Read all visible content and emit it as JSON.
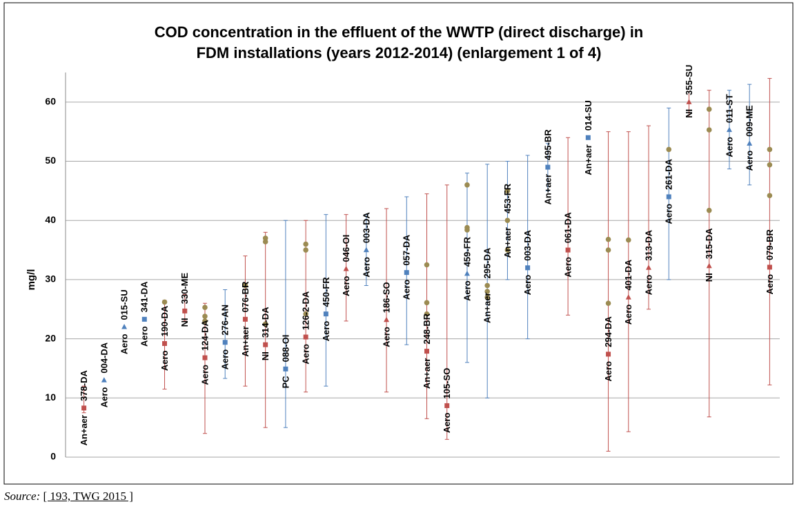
{
  "chart_data": {
    "type": "range",
    "title": [
      "COD concentration in the effluent of the WWTP (direct discharge) in",
      "FDM installations (years 2012-2014) (enlargement 1 of 4)"
    ],
    "ylabel": "mg/l",
    "ylim": [
      0,
      65
    ],
    "yticks": [
      0,
      10,
      20,
      30,
      40,
      50,
      60
    ],
    "grid": true,
    "installations": [
      {
        "type": "An+aer",
        "id": "378-DA",
        "color": "#c0504d",
        "min": 7.5,
        "max": 12,
        "points": [
          {
            "value": 8.3,
            "marker": "square",
            "color": "#c0504d"
          }
        ]
      },
      {
        "type": "Aero",
        "id": "004-DA",
        "color": "#4f81bd",
        "points": [
          {
            "value": 13.0,
            "marker": "triangle",
            "color": "#4f81bd"
          }
        ]
      },
      {
        "type": "Aero",
        "id": "015-SU",
        "color": "#4f81bd",
        "points": [
          {
            "value": 22.0,
            "marker": "triangle",
            "color": "#4f81bd"
          }
        ]
      },
      {
        "type": "Aero",
        "id": "341-DA",
        "color": "#4f81bd",
        "points": [
          {
            "value": 23.3,
            "marker": "square",
            "color": "#4f81bd"
          }
        ]
      },
      {
        "type": "Aero",
        "id": "190-DA",
        "color": "#c0504d",
        "min": 11.5,
        "max": 26.5,
        "points": [
          {
            "value": 19.2,
            "marker": "square",
            "color": "#c0504d"
          },
          {
            "value": 26.2,
            "marker": "circle",
            "color": "#9b8b52"
          }
        ]
      },
      {
        "type": "NI",
        "id": "330-ME",
        "color": "#c0504d",
        "min": 23,
        "max": 27.5,
        "points": [
          {
            "value": 24.7,
            "marker": "square",
            "color": "#c0504d"
          }
        ]
      },
      {
        "type": "Aero",
        "id": "124-DA",
        "color": "#c0504d",
        "min": 4,
        "max": 26,
        "points": [
          {
            "value": 16.8,
            "marker": "square",
            "color": "#c0504d"
          },
          {
            "value": 25.3,
            "marker": "circle",
            "color": "#9b8b52"
          },
          {
            "value": 23.8,
            "marker": "circle",
            "color": "#9b8b52"
          },
          {
            "value": 23.0,
            "marker": "circle",
            "color": "#9b8b52"
          }
        ]
      },
      {
        "type": "Aero",
        "id": "276-AN",
        "color": "#4f81bd",
        "min": 13.3,
        "max": 28.3,
        "points": [
          {
            "value": 19.4,
            "marker": "square",
            "color": "#4f81bd"
          }
        ]
      },
      {
        "type": "An+aer",
        "id": "076-BR",
        "color": "#c0504d",
        "min": 12,
        "max": 34,
        "points": [
          {
            "value": 23.3,
            "marker": "square",
            "color": "#c0504d"
          },
          {
            "value": 29.0,
            "marker": "circle",
            "color": "#9b8b52"
          }
        ]
      },
      {
        "type": "NI",
        "id": "314-DA",
        "color": "#c0504d",
        "min": 5,
        "max": 38,
        "points": [
          {
            "value": 19.0,
            "marker": "square",
            "color": "#c0504d"
          },
          {
            "value": 37.0,
            "marker": "circle",
            "color": "#9b8b52"
          },
          {
            "value": 36.4,
            "marker": "circle",
            "color": "#9b8b52"
          },
          {
            "value": 22.5,
            "marker": "circle",
            "color": "#9b8b52"
          }
        ]
      },
      {
        "type": "PC",
        "id": "088-OI",
        "color": "#4f81bd",
        "min": 5,
        "max": 40,
        "points": [
          {
            "value": 14.9,
            "marker": "square",
            "color": "#4f81bd"
          }
        ]
      },
      {
        "type": "Aero",
        "id": "126-2-DA",
        "color": "#c0504d",
        "min": 11,
        "max": 40,
        "points": [
          {
            "value": 20.3,
            "marker": "square",
            "color": "#c0504d"
          },
          {
            "value": 36.0,
            "marker": "circle",
            "color": "#9b8b52"
          },
          {
            "value": 35.0,
            "marker": "circle",
            "color": "#9b8b52"
          },
          {
            "value": 24.2,
            "marker": "circle",
            "color": "#9b8b52"
          }
        ]
      },
      {
        "type": "Aero",
        "id": "450-FR",
        "color": "#4f81bd",
        "min": 12,
        "max": 41,
        "points": [
          {
            "value": 24.2,
            "marker": "square",
            "color": "#4f81bd"
          }
        ]
      },
      {
        "type": "Aero",
        "id": "046-OI",
        "color": "#c0504d",
        "min": 23,
        "max": 41,
        "points": [
          {
            "value": 31.8,
            "marker": "triangle",
            "color": "#c0504d"
          }
        ]
      },
      {
        "type": "Aero",
        "id": "003-DA",
        "color": "#4f81bd",
        "min": 29,
        "max": 41,
        "points": [
          {
            "value": 35.0,
            "marker": "triangle",
            "color": "#4f81bd"
          }
        ]
      },
      {
        "type": "Aero",
        "id": "186-SO",
        "color": "#c0504d",
        "min": 11,
        "max": 42,
        "points": [
          {
            "value": 23.2,
            "marker": "triangle",
            "color": "#c0504d"
          }
        ]
      },
      {
        "type": "Aero",
        "id": "057-DA",
        "color": "#4f81bd",
        "min": 19,
        "max": 44,
        "points": [
          {
            "value": 31.2,
            "marker": "square",
            "color": "#4f81bd"
          }
        ]
      },
      {
        "type": "An+aer",
        "id": "248-BR",
        "color": "#c0504d",
        "min": 6.5,
        "max": 44.5,
        "points": [
          {
            "value": 17.9,
            "marker": "square",
            "color": "#c0504d"
          },
          {
            "value": 32.5,
            "marker": "circle",
            "color": "#9b8b52"
          },
          {
            "value": 26.1,
            "marker": "circle",
            "color": "#9b8b52"
          },
          {
            "value": 24.2,
            "marker": "circle",
            "color": "#9b8b52"
          }
        ]
      },
      {
        "type": "Aero",
        "id": "105-SO",
        "color": "#c0504d",
        "min": 3,
        "max": 46,
        "points": [
          {
            "value": 8.7,
            "marker": "square",
            "color": "#c0504d"
          }
        ]
      },
      {
        "type": "Aero",
        "id": "459-FR",
        "color": "#4f81bd",
        "min": 16,
        "max": 48,
        "points": [
          {
            "value": 31.0,
            "marker": "triangle",
            "color": "#4f81bd"
          },
          {
            "value": 46.0,
            "marker": "circle",
            "color": "#9b8b52"
          },
          {
            "value": 38.8,
            "marker": "circle",
            "color": "#9b8b52"
          },
          {
            "value": 38.4,
            "marker": "circle",
            "color": "#9b8b52"
          }
        ]
      },
      {
        "type": "An+aer",
        "id": "295-DA",
        "color": "#4f81bd",
        "min": 10,
        "max": 49.5,
        "points": [
          {
            "value": 29.0,
            "marker": "circle",
            "color": "#9b8b52"
          },
          {
            "value": 28.0,
            "marker": "circle",
            "color": "#9b8b52"
          },
          {
            "value": 27.0,
            "marker": "circle",
            "color": "#9b8b52"
          }
        ]
      },
      {
        "type": "An+aer",
        "id": "453-FR",
        "color": "#4f81bd",
        "min": 30,
        "max": 50,
        "points": [
          {
            "value": 40.0,
            "marker": "circle",
            "color": "#9b8b52"
          },
          {
            "value": 45.0,
            "marker": "circle",
            "color": "#9b8b52"
          },
          {
            "value": 35.0,
            "marker": "circle",
            "color": "#9b8b52"
          }
        ]
      },
      {
        "type": "Aero",
        "id": "003-DA",
        "color": "#4f81bd",
        "min": 20,
        "max": 51,
        "points": [
          {
            "value": 32.0,
            "marker": "square",
            "color": "#4f81bd"
          }
        ]
      },
      {
        "type": "An+aer",
        "id": "495-BR",
        "color": "#4f81bd",
        "min": 45,
        "max": 53,
        "points": [
          {
            "value": 49.0,
            "marker": "square",
            "color": "#4f81bd"
          }
        ]
      },
      {
        "type": "Aero",
        "id": "061-DA",
        "color": "#c0504d",
        "min": 24,
        "max": 54,
        "points": [
          {
            "value": 35.0,
            "marker": "square",
            "color": "#c0504d"
          }
        ]
      },
      {
        "type": "An+aer",
        "id": "014-SU",
        "color": "#4f81bd",
        "points": [
          {
            "value": 54.0,
            "marker": "square",
            "color": "#4f81bd"
          }
        ]
      },
      {
        "type": "Aero",
        "id": "294-DA",
        "color": "#c0504d",
        "min": 1,
        "max": 55,
        "points": [
          {
            "value": 17.4,
            "marker": "square",
            "color": "#c0504d"
          },
          {
            "value": 36.8,
            "marker": "circle",
            "color": "#9b8b52"
          },
          {
            "value": 35.0,
            "marker": "circle",
            "color": "#9b8b52"
          },
          {
            "value": 26.0,
            "marker": "circle",
            "color": "#9b8b52"
          }
        ]
      },
      {
        "type": "Aero",
        "id": "401-DA",
        "color": "#c0504d",
        "min": 4.3,
        "max": 55,
        "points": [
          {
            "value": 27.0,
            "marker": "triangle",
            "color": "#c0504d"
          },
          {
            "value": 36.7,
            "marker": "circle",
            "color": "#9b8b52"
          }
        ]
      },
      {
        "type": "Aero",
        "id": "313-DA",
        "color": "#c0504d",
        "min": 25,
        "max": 56,
        "points": [
          {
            "value": 32.0,
            "marker": "triangle",
            "color": "#c0504d"
          }
        ]
      },
      {
        "type": "Aero",
        "id": "261-DA",
        "color": "#4f81bd",
        "min": 30,
        "max": 59,
        "points": [
          {
            "value": 44.0,
            "marker": "square",
            "color": "#4f81bd"
          },
          {
            "value": 52.0,
            "marker": "circle",
            "color": "#9b8b52"
          }
        ]
      },
      {
        "type": "NI",
        "id": "355-SU",
        "color": "#c0504d",
        "min": 57.5,
        "max": 61.8,
        "points": [
          {
            "value": 60.0,
            "marker": "triangle",
            "color": "#c0504d"
          }
        ]
      },
      {
        "type": "NI",
        "id": "315-DA",
        "color": "#c0504d",
        "min": 6.8,
        "max": 62,
        "points": [
          {
            "value": 32.3,
            "marker": "triangle",
            "color": "#c0504d"
          },
          {
            "value": 58.8,
            "marker": "circle",
            "color": "#9b8b52"
          },
          {
            "value": 55.3,
            "marker": "circle",
            "color": "#9b8b52"
          },
          {
            "value": 41.7,
            "marker": "circle",
            "color": "#9b8b52"
          }
        ]
      },
      {
        "type": "Aero",
        "id": "011-ST",
        "color": "#4f81bd",
        "min": 48.7,
        "max": 62,
        "points": [
          {
            "value": 55.3,
            "marker": "triangle",
            "color": "#4f81bd"
          }
        ]
      },
      {
        "type": "Aero",
        "id": "009-ME",
        "color": "#4f81bd",
        "min": 46,
        "max": 63,
        "points": [
          {
            "value": 53.0,
            "marker": "triangle",
            "color": "#4f81bd"
          }
        ]
      },
      {
        "type": "Aero",
        "id": "079-BR",
        "color": "#c0504d",
        "min": 12.2,
        "max": 64,
        "points": [
          {
            "value": 32.1,
            "marker": "square",
            "color": "#c0504d"
          },
          {
            "value": 52.0,
            "marker": "circle",
            "color": "#9b8b52"
          },
          {
            "value": 49.4,
            "marker": "circle",
            "color": "#9b8b52"
          },
          {
            "value": 44.2,
            "marker": "circle",
            "color": "#9b8b52"
          }
        ]
      }
    ]
  },
  "source_label": "Source:",
  "source": "[ 193, TWG 2015 ]"
}
